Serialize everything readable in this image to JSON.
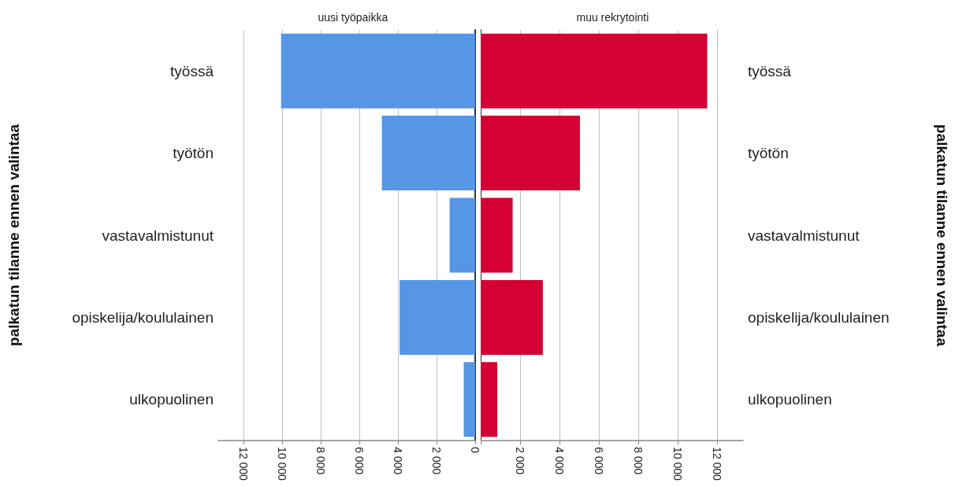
{
  "chart_data": [
    {
      "type": "bar",
      "orientation": "horizontal",
      "title": "uusi työpaikka",
      "ylabel": "palkatun tilanne ennen valintaa",
      "categories": [
        "työssä",
        "työtön",
        "vastavalmistunut",
        "opiskelija/koululainen",
        "ulkopuolinen"
      ],
      "values": [
        10050,
        4830,
        1320,
        3910,
        590
      ],
      "color": "#5796e4",
      "xlim": [
        13300,
        0
      ],
      "xticks": [
        {
          "value": 12000,
          "label": "12 000"
        },
        {
          "value": 10000,
          "label": "10 000"
        },
        {
          "value": 8000,
          "label": "8 000"
        },
        {
          "value": 6000,
          "label": "6 000"
        },
        {
          "value": 4000,
          "label": "4 000"
        },
        {
          "value": 2000,
          "label": "2 000"
        },
        0
      ],
      "grid": "x"
    },
    {
      "type": "bar",
      "orientation": "horizontal",
      "title": "muu rekrytointi",
      "ylabel": "palkatun tilanne ennen valintaa",
      "categories": [
        "työssä",
        "työtön",
        "vastavalmistunut",
        "opiskelija/koululainen",
        "ulkopuolinen"
      ],
      "values": [
        11480,
        5030,
        1620,
        3150,
        840
      ],
      "color": "#d50032",
      "xlim": [
        0,
        13300
      ],
      "xticks": [
        {
          "value": 0,
          "label": null
        },
        {
          "value": 2000,
          "label": "2 000"
        },
        {
          "value": 4000,
          "label": "4 000"
        },
        {
          "value": 6000,
          "label": "6 000"
        },
        {
          "value": 8000,
          "label": "8 000"
        },
        {
          "value": 10000,
          "label": "10 000"
        },
        {
          "value": 12000,
          "label": "12 000"
        }
      ],
      "grid": "x"
    }
  ]
}
